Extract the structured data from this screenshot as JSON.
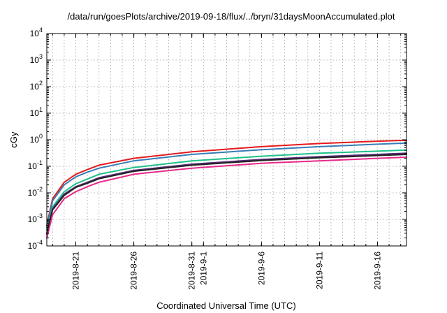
{
  "chart_data": {
    "type": "line",
    "title": "/data/run/goesPlots/archive/2019-09-18/flux/../bryn/31daysMoonAccumulated.plot",
    "xlabel": "Coordinated Universal Time (UTC)",
    "ylabel": "cGy",
    "yscale": "log",
    "ylim": [
      0.0001,
      10000
    ],
    "yticks": [
      {
        "base": "10",
        "exp": "-4",
        "value": 0.0001
      },
      {
        "base": "10",
        "exp": "-3",
        "value": 0.001
      },
      {
        "base": "10",
        "exp": "-2",
        "value": 0.01
      },
      {
        "base": "10",
        "exp": "-1",
        "value": 0.1
      },
      {
        "base": "10",
        "exp": "0",
        "value": 1
      },
      {
        "base": "10",
        "exp": "1",
        "value": 10
      },
      {
        "base": "10",
        "exp": "2",
        "value": 100
      },
      {
        "base": "10",
        "exp": "3",
        "value": 1000
      },
      {
        "base": "10",
        "exp": "4",
        "value": 10000
      }
    ],
    "xlim": [
      "2019-08-18T12:00",
      "2019-09-18T12:00"
    ],
    "xticks": [
      {
        "label": "2019-8-21",
        "date": "2019-08-21"
      },
      {
        "label": "2019-8-26",
        "date": "2019-08-26"
      },
      {
        "label": "2019-8-31",
        "date": "2019-08-31"
      },
      {
        "label": "2019-9-1",
        "date": "2019-09-01"
      },
      {
        "label": "2019-9-6",
        "date": "2019-09-06"
      },
      {
        "label": "2019-9-11",
        "date": "2019-09-11"
      },
      {
        "label": "2019-9-16",
        "date": "2019-09-16"
      }
    ],
    "grid": true,
    "x": [
      "2019-08-18T12:00",
      "2019-08-19T00:00",
      "2019-08-20T00:00",
      "2019-08-21T00:00",
      "2019-08-22T00:00",
      "2019-08-23T00:00",
      "2019-08-26T00:00",
      "2019-08-31T00:00",
      "2019-09-06T00:00",
      "2019-09-11T00:00",
      "2019-09-16T00:00",
      "2019-09-18T12:00"
    ],
    "series": [
      {
        "color": "#e41a1c",
        "values": [
          0.0006,
          0.006,
          0.025,
          0.05,
          0.075,
          0.11,
          0.2,
          0.35,
          0.55,
          0.72,
          0.88,
          0.95
        ]
      },
      {
        "color": "#377eb8",
        "values": [
          0.0005,
          0.005,
          0.02,
          0.04,
          0.06,
          0.085,
          0.16,
          0.28,
          0.42,
          0.55,
          0.68,
          0.75
        ]
      },
      {
        "color": "#1ec08a",
        "values": [
          0.0004,
          0.003,
          0.011,
          0.022,
          0.033,
          0.05,
          0.09,
          0.16,
          0.24,
          0.31,
          0.37,
          0.41
        ]
      },
      {
        "color": "#5a2a7a",
        "values": [
          0.0003,
          0.0025,
          0.009,
          0.017,
          0.025,
          0.037,
          0.07,
          0.12,
          0.18,
          0.23,
          0.28,
          0.31
        ]
      },
      {
        "color": "#222222",
        "values": [
          0.00028,
          0.0023,
          0.008,
          0.016,
          0.023,
          0.034,
          0.065,
          0.11,
          0.165,
          0.21,
          0.255,
          0.28
        ]
      },
      {
        "color": "#e7298a",
        "values": [
          0.0002,
          0.0015,
          0.006,
          0.011,
          0.017,
          0.025,
          0.05,
          0.085,
          0.13,
          0.16,
          0.2,
          0.22
        ]
      }
    ]
  }
}
